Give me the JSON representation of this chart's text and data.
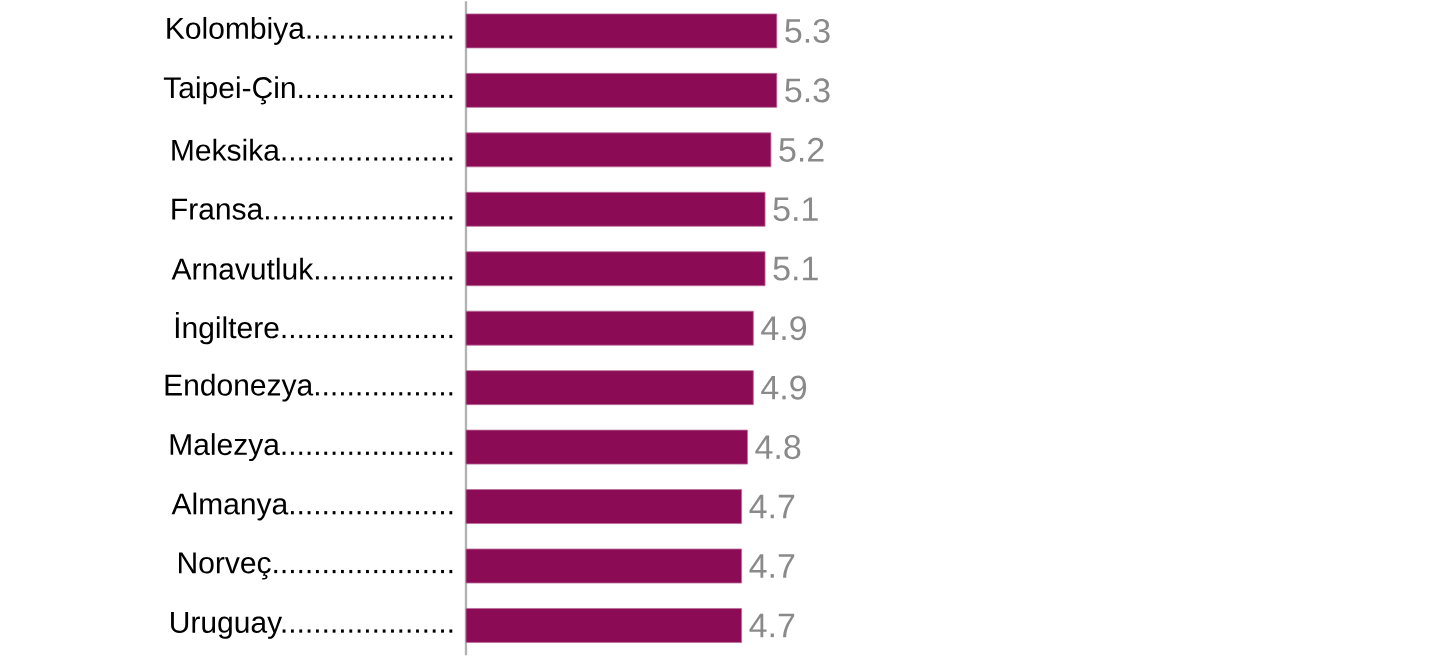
{
  "chart_data": {
    "type": "bar",
    "orientation": "horizontal",
    "categories": [
      "Kolombiya..................",
      "Taipei-Çin...................",
      "Meksika.....................",
      "Fransa.......................",
      "Arnavutluk.................",
      "İngiltere.....................",
      "Endonezya.................",
      "Malezya.....................",
      "Almanya....................",
      "Norveç......................",
      "Uruguay....................."
    ],
    "values": [
      5.3,
      5.3,
      5.2,
      5.1,
      5.1,
      4.9,
      4.9,
      4.8,
      4.7,
      4.7,
      4.7
    ],
    "color": "#8c0b55",
    "data_labels": true
  }
}
